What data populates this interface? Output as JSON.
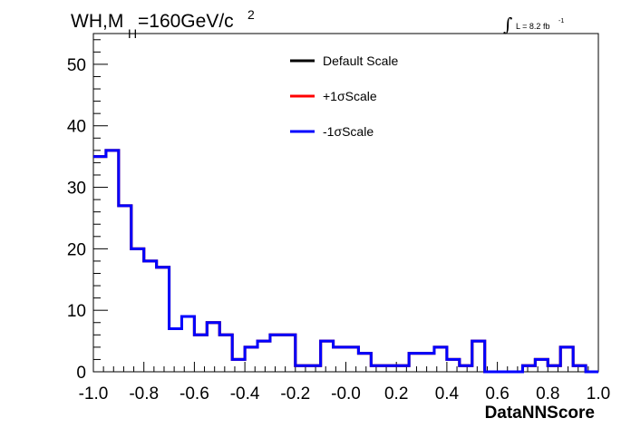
{
  "header": {
    "title_main": "WH,M",
    "title_sub": "H",
    "title_rest": "=160GeV/c",
    "title_sup": "2",
    "lumi_integral": "∫",
    "lumi_text": "L = 8.2 fb",
    "lumi_sup": "-1"
  },
  "chart_data": {
    "type": "line",
    "style": "step-histogram",
    "xlabel": "DataNNScore",
    "ylabel": "",
    "xlim": [
      -1.0,
      1.0
    ],
    "ylim": [
      0,
      55
    ],
    "x_tick_labels": [
      "-1.0",
      "-0.8",
      "-0.6",
      "-0.4",
      "-0.2",
      "-0.0",
      "0.2",
      "0.4",
      "0.6",
      "0.8",
      "1.0"
    ],
    "x_ticks": [
      -1.0,
      -0.8,
      -0.6,
      -0.4,
      -0.2,
      0.0,
      0.2,
      0.4,
      0.6,
      0.8,
      1.0
    ],
    "y_tick_labels": [
      "0",
      "10",
      "20",
      "30",
      "40",
      "50"
    ],
    "y_ticks": [
      0,
      10,
      20,
      30,
      40,
      50
    ],
    "bin_edges": [
      -1.0,
      -0.95,
      -0.9,
      -0.85,
      -0.8,
      -0.75,
      -0.7,
      -0.65,
      -0.6,
      -0.55,
      -0.5,
      -0.45,
      -0.4,
      -0.35,
      -0.3,
      -0.25,
      -0.2,
      -0.15,
      -0.1,
      -0.05,
      0.0,
      0.05,
      0.1,
      0.15,
      0.2,
      0.25,
      0.3,
      0.35,
      0.4,
      0.45,
      0.5,
      0.55,
      0.6,
      0.65,
      0.7,
      0.75,
      0.8,
      0.85,
      0.9,
      0.95,
      1.0
    ],
    "series": [
      {
        "name": "Default Scale",
        "color": "#000000",
        "values": [
          35,
          36,
          27,
          20,
          18,
          17,
          7,
          9,
          6,
          8,
          6,
          2,
          4,
          5,
          6,
          6,
          1,
          1,
          5,
          4,
          4,
          3,
          1,
          1,
          1,
          3,
          3,
          4,
          2,
          1,
          5,
          0,
          0,
          0,
          1,
          2,
          1,
          4,
          1,
          0
        ]
      },
      {
        "name": "+1σScale",
        "color": "#ff0000",
        "values": [
          35,
          36,
          27,
          20,
          18,
          17,
          7,
          9,
          6,
          8,
          6,
          2,
          4,
          5,
          6,
          6,
          1,
          1,
          5,
          4,
          4,
          3,
          1,
          1,
          1,
          3,
          3,
          4,
          2,
          1,
          5,
          0,
          0,
          0,
          1,
          2,
          1,
          4,
          1,
          0
        ]
      },
      {
        "name": "-1σScale",
        "color": "#0000ff",
        "values": [
          35,
          36,
          27,
          20,
          18,
          17,
          7,
          9,
          6,
          8,
          6,
          2,
          4,
          5,
          6,
          6,
          1,
          1,
          5,
          4,
          4,
          3,
          1,
          1,
          1,
          3,
          3,
          4,
          2,
          1,
          5,
          0,
          0,
          0,
          1,
          2,
          1,
          4,
          1,
          0
        ]
      }
    ],
    "legend_position": "top-center",
    "grid": false
  }
}
